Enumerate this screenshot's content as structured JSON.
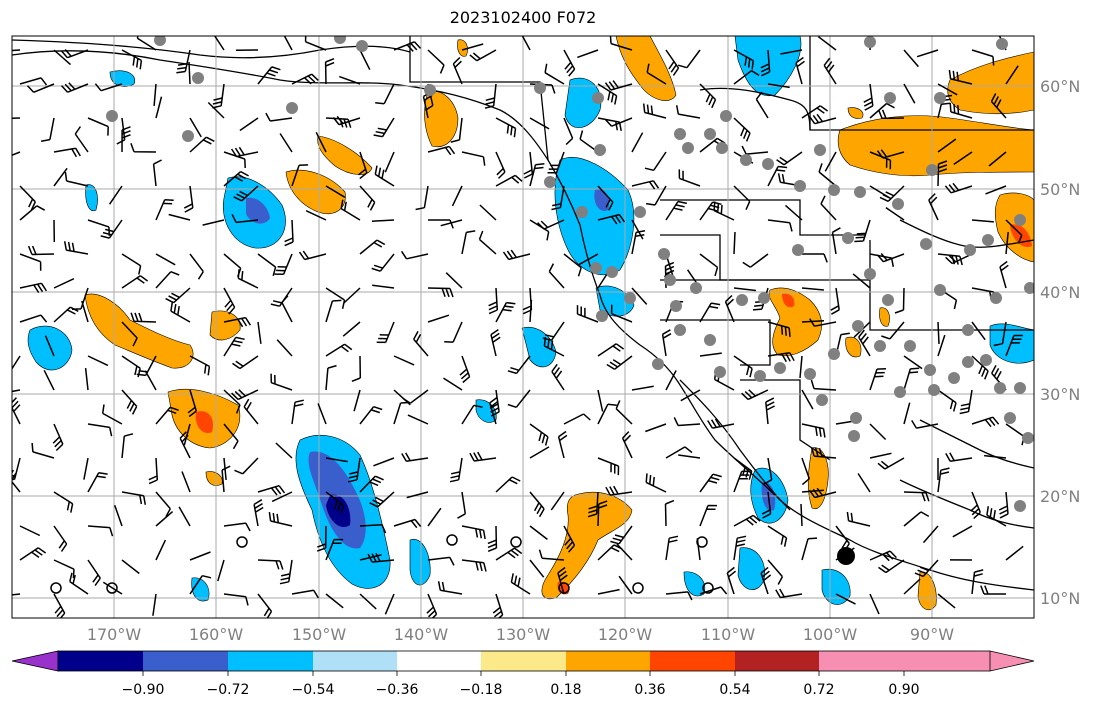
{
  "title": "2023102400 F072",
  "map": {
    "lon_range": [
      -180,
      -80
    ],
    "lat_range": [
      8,
      65
    ],
    "lat_labels": [
      "10°N",
      "20°N",
      "30°N",
      "40°N",
      "50°N",
      "60°N"
    ],
    "lat_values": [
      10,
      20,
      30,
      40,
      50,
      60
    ],
    "lon_labels": [
      "170°W",
      "160°W",
      "150°W",
      "140°W",
      "130°W",
      "120°W",
      "110°W",
      "100°W",
      "90°W"
    ],
    "lon_values": [
      -170,
      -160,
      -150,
      -140,
      -130,
      -120,
      -110,
      -100,
      -90
    ],
    "grid": true
  },
  "colorbar": {
    "colors": [
      "#9932cc",
      "#00008b",
      "#3a5fcd",
      "#00bfff",
      "#b0e0f7",
      "#ffffff",
      "#fce98a",
      "#ffa500",
      "#ff4500",
      "#b22222",
      "#f78fb3"
    ],
    "tick_labels": [
      "−0.90",
      "−0.72",
      "−0.54",
      "−0.36",
      "−0.18",
      "0.18",
      "0.36",
      "0.54",
      "0.72",
      "0.90"
    ],
    "extend": "both"
  }
}
